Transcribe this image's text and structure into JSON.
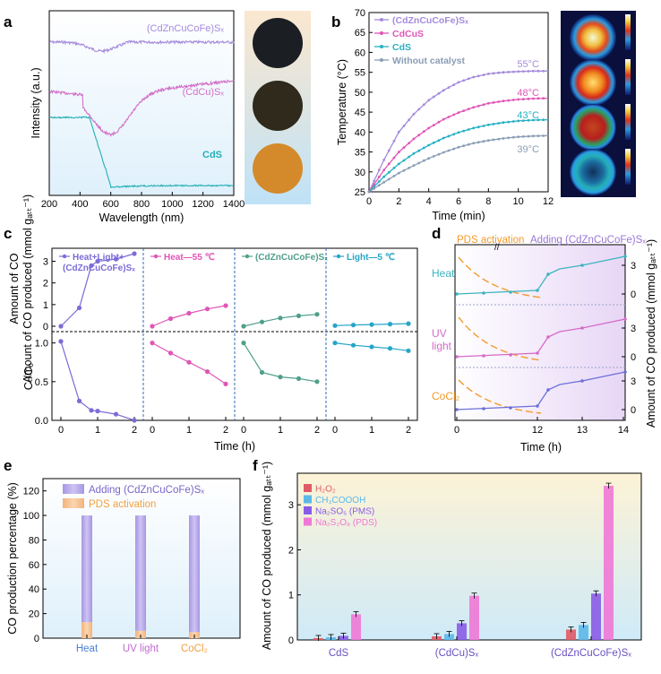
{
  "figure": {
    "labels": {
      "a": "a",
      "b": "b",
      "c": "c",
      "d": "d",
      "e": "e",
      "f": "f"
    }
  },
  "panel_a": {
    "xlabel": "Wavelength (nm)",
    "ylabel": "Intensity (a.u.)",
    "xticks": [
      "200",
      "400",
      "600",
      "800",
      "1000",
      "1200",
      "1400"
    ],
    "series_labels": [
      "(CdZnCuCoFe)Sₓ",
      "(CdCu)Sₓ",
      "CdS"
    ],
    "colors": [
      "#a58bdc",
      "#d36fc8",
      "#22b0b5"
    ],
    "photo_colors": [
      "#1b1f24",
      "#2f2a1c",
      "#d48a2a"
    ]
  },
  "panel_b": {
    "ylabel": "Temperature (°C)",
    "xlabel": "Time (min)",
    "xticks": [
      "0",
      "2",
      "4",
      "6",
      "8",
      "10",
      "12"
    ],
    "yticks": [
      "25",
      "30",
      "35",
      "40",
      "45",
      "50",
      "55",
      "60",
      "65",
      "70"
    ],
    "legend": [
      "(CdZnCuCoFe)Sₓ",
      "CdCuS",
      "CdS",
      "Without catalyst"
    ],
    "end_labels": [
      "55°C",
      "48°C",
      "43°C",
      "39°C"
    ],
    "colors": [
      "#a58bdc",
      "#e055b6",
      "#25b0c2",
      "#8a9db5"
    ]
  },
  "panel_c": {
    "ylabel_top": "Amount of CO produced (mmol gₐₜₜ⁻¹)",
    "ylabel_top_l1": "Amount of CO",
    "ylabel_top_l2": "produced (mmol g",
    "ylabel_bot": "Cₜ/C₀",
    "xlabel": "Time (h)",
    "yticks_top": [
      "0",
      "1",
      "2",
      "3"
    ],
    "yticks_bot": [
      "0.0",
      "0.5",
      "1.0"
    ],
    "xticks": [
      "0",
      "1",
      "2"
    ],
    "subpanels": [
      {
        "label": "Heat+Light+",
        "label2": "(CdZnCuCoFe)Sₓ",
        "color": "#7b6cd6"
      },
      {
        "label": "Heat—55 ℃",
        "color": "#e055b6"
      },
      {
        "label": "(CdZnCuCoFe)Sₓ",
        "color": "#4f9f8a"
      },
      {
        "label": "Light—5 ℃",
        "color": "#25a6c8"
      }
    ]
  },
  "panel_d": {
    "title_left": "PDS activation",
    "title_right": "Adding (CdZnCuCoFe)Sₓ",
    "rows": [
      "Heat",
      "UV light",
      "CoCl₂"
    ],
    "row_l1": [
      "Heat",
      "UV",
      "CoCl₂"
    ],
    "row_l2": [
      "",
      "light",
      ""
    ],
    "ylabel": "Amount of CO produced (mmol gₐₜₜ⁻¹)",
    "xlabel": "Time (h)",
    "xticks": [
      "0",
      "12",
      "13",
      "14"
    ],
    "yticks": [
      "0",
      "3"
    ],
    "colors": {
      "pds": "#f39a2c",
      "heat": "#3cb4bf",
      "uv": "#d56ac8",
      "co": "#6a6fd8"
    }
  },
  "panel_e": {
    "ylabel": "CO production percentage (%)",
    "yticks": [
      "0",
      "20",
      "40",
      "60",
      "80",
      "100",
      "120"
    ],
    "legend": [
      "Adding (CdZnCuCoFe)Sₓ",
      "PDS activation"
    ],
    "categories": [
      "Heat",
      "UV light",
      "CoCl₂"
    ],
    "cat_colors": [
      "#4a7fd6",
      "#c36ad4",
      "#f0a040"
    ],
    "chart_data": {
      "type": "bar",
      "categories": [
        "Heat",
        "UV light",
        "CoCl₂"
      ],
      "series": [
        {
          "name": "PDS activation",
          "values": [
            13,
            6,
            5
          ]
        },
        {
          "name": "Adding (CdZnCuCoFe)Sₓ",
          "values": [
            87,
            94,
            95
          ]
        }
      ],
      "ylim": [
        0,
        130
      ]
    }
  },
  "panel_f": {
    "ylabel": "Amount of CO produced (mmol gₐₜₜ⁻¹)",
    "yticks": [
      "0",
      "1",
      "2",
      "3"
    ],
    "legend": [
      "H₂O₂",
      "CH₃COOOH",
      "Na₂SO₅ (PMS)",
      "Na₂S₂O₈ (PDS)"
    ],
    "colors": [
      "#e05a66",
      "#5cb8e8",
      "#8a5ce6",
      "#ef78d6"
    ],
    "chart_data": {
      "type": "bar",
      "categories": [
        "CdS",
        "(CdCu)Sₓ",
        "(CdZnCuCoFe)Sₓ"
      ],
      "series": [
        {
          "name": "H₂O₂",
          "values": [
            0.04,
            0.08,
            0.23
          ]
        },
        {
          "name": "CH₃COOOH",
          "values": [
            0.06,
            0.13,
            0.33
          ]
        },
        {
          "name": "Na₂SO₅ (PMS)",
          "values": [
            0.09,
            0.37,
            1.03
          ]
        },
        {
          "name": "Na₂S₂O₈ (PDS)",
          "values": [
            0.57,
            0.98,
            3.42
          ]
        }
      ],
      "ylim": [
        0,
        3.7
      ]
    }
  },
  "chart_data": [
    {
      "type": "line",
      "panel": "b",
      "x": [
        0,
        1,
        2,
        3,
        4,
        5,
        6,
        7,
        8,
        9,
        10,
        11,
        12
      ],
      "series": [
        {
          "name": "(CdZnCuCoFe)Sₓ",
          "values": [
            25,
            33,
            40,
            44.5,
            48,
            50.5,
            52.5,
            53.8,
            54.6,
            55,
            55.2,
            55.3,
            55.3
          ]
        },
        {
          "name": "CdCuS",
          "values": [
            25,
            30.5,
            35,
            38.3,
            41,
            43.2,
            44.9,
            46.2,
            47.2,
            47.8,
            48.2,
            48.4,
            48.5
          ]
        },
        {
          "name": "CdS",
          "values": [
            25,
            28.8,
            32,
            34.6,
            36.7,
            38.5,
            39.9,
            41,
            41.8,
            42.4,
            42.8,
            43,
            43.1
          ]
        },
        {
          "name": "Without catalyst",
          "values": [
            25,
            27.4,
            29.7,
            31.6,
            33.4,
            34.9,
            36.2,
            37.2,
            37.9,
            38.4,
            38.8,
            39,
            39.1
          ]
        }
      ],
      "xlim": [
        0,
        12
      ],
      "ylim": [
        25,
        70
      ]
    },
    {
      "type": "line",
      "panel": "c",
      "subpanels": [
        {
          "name": "Heat+Light+ (CdZnCuCoFe)Sₓ",
          "x": [
            0,
            0.5,
            0.83,
            1,
            1.5,
            2
          ],
          "co": [
            0,
            0.85,
            2.8,
            3.0,
            3.1,
            3.35
          ],
          "ct": [
            1.02,
            0.25,
            0.13,
            0.12,
            0.08,
            0.0
          ]
        },
        {
          "name": "Heat—55 ℃",
          "x": [
            0,
            0.5,
            1,
            1.5,
            2
          ],
          "co": [
            0,
            0.35,
            0.6,
            0.8,
            0.95
          ],
          "ct": [
            1.0,
            0.87,
            0.75,
            0.63,
            0.47
          ]
        },
        {
          "name": "(CdZnCuCoFe)Sₓ",
          "x": [
            0,
            0.5,
            1,
            1.5,
            2
          ],
          "co": [
            0,
            0.2,
            0.38,
            0.48,
            0.55
          ],
          "ct": [
            1.0,
            0.62,
            0.56,
            0.54,
            0.5
          ]
        },
        {
          "name": "Light—5 ℃",
          "x": [
            0,
            0.5,
            1,
            1.5,
            2
          ],
          "co": [
            0.03,
            0.06,
            0.08,
            0.1,
            0.12
          ],
          "ct": [
            1.0,
            0.97,
            0.95,
            0.93,
            0.9
          ]
        }
      ]
    }
  ]
}
